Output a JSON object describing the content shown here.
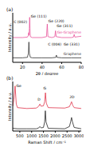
{
  "chart_data": [
    {
      "type": "line",
      "title": "(a)",
      "x_label": "2θ / degree",
      "y_label": "Intensity / a.u.",
      "xlim": [
        10,
        80
      ],
      "xticks": [
        20,
        40,
        60,
        80
      ],
      "ylim": [
        0,
        1.1
      ],
      "tick_labels": "x",
      "series": [
        {
          "name": "Ge-Graphene",
          "color": "#e8539a",
          "x": [
            10,
            20,
            25,
            26,
            26.3,
            26.6,
            27,
            27.3,
            27.6,
            28,
            30,
            40,
            44.5,
            45.3,
            46,
            50,
            53,
            53.7,
            54.4,
            60,
            70,
            72,
            72.8,
            73.5,
            80
          ],
          "values": [
            0.55,
            0.55,
            0.56,
            0.6,
            0.66,
            0.6,
            0.75,
            1.0,
            0.75,
            0.57,
            0.55,
            0.55,
            0.57,
            0.85,
            0.57,
            0.55,
            0.57,
            0.7,
            0.57,
            0.55,
            0.55,
            0.56,
            0.62,
            0.56,
            0.58
          ]
        },
        {
          "name": "Graphene",
          "color": "#333333",
          "x": [
            10,
            20,
            25,
            26,
            26.5,
            27,
            28,
            30,
            40,
            50,
            54,
            54.6,
            55.2,
            60,
            70,
            80
          ],
          "values": [
            0.1,
            0.1,
            0.11,
            0.2,
            0.45,
            0.2,
            0.11,
            0.1,
            0.1,
            0.1,
            0.11,
            0.16,
            0.11,
            0.1,
            0.1,
            0.1
          ]
        }
      ],
      "annotations": [
        {
          "text": "C (002)",
          "x": 11,
          "y": 0.9
        },
        {
          "text": "Ge (111)",
          "x": 28.5,
          "y": 1.02
        },
        {
          "text": "Ge (220)",
          "x": 46.5,
          "y": 0.92
        },
        {
          "text": "Ge (311)",
          "x": 55,
          "y": 0.8
        },
        {
          "text": "C (004)",
          "x": 46,
          "y": 0.4
        },
        {
          "text": "Ge (331)",
          "x": 62,
          "y": 0.4
        }
      ]
    },
    {
      "type": "line",
      "title": "(b)",
      "x_label": "Raman Shift / cm⁻¹",
      "y_label": "Intensity / a.u.",
      "xlim": [
        200,
        3100
      ],
      "xticks": [
        500,
        1000,
        1500,
        2000,
        2500,
        3000
      ],
      "ylim": [
        0,
        1.1
      ],
      "tick_labels": "x",
      "series": [
        {
          "color": "#e0334a",
          "x": [
            200,
            250,
            300,
            350,
            400,
            800,
            1200,
            1300,
            1350,
            1400,
            1500,
            1550,
            1585,
            1620,
            1700,
            2400,
            2600,
            2650,
            2690,
            2730,
            2800,
            3100
          ],
          "values": [
            0.55,
            0.7,
            1.0,
            0.6,
            0.52,
            0.5,
            0.51,
            0.55,
            0.6,
            0.55,
            0.56,
            0.65,
            0.85,
            0.62,
            0.52,
            0.51,
            0.54,
            0.6,
            0.65,
            0.58,
            0.52,
            0.5
          ]
        },
        {
          "color": "#222222",
          "x": [
            200,
            400,
            800,
            1200,
            1300,
            1350,
            1400,
            1500,
            1550,
            1580,
            1610,
            1700,
            2400,
            2600,
            2650,
            2690,
            2730,
            2800,
            3100
          ],
          "values": [
            0.06,
            0.05,
            0.05,
            0.05,
            0.07,
            0.1,
            0.07,
            0.08,
            0.2,
            0.45,
            0.2,
            0.06,
            0.05,
            0.1,
            0.2,
            0.3,
            0.2,
            0.08,
            0.05
          ]
        }
      ],
      "annotations": [
        {
          "text": "Ge",
          "x": 350,
          "y": 1.0
        },
        {
          "text": "D",
          "x": 1250,
          "y": 0.7
        },
        {
          "text": "G",
          "x": 1500,
          "y": 0.95
        },
        {
          "text": "2D",
          "x": 2600,
          "y": 0.75
        }
      ]
    }
  ]
}
